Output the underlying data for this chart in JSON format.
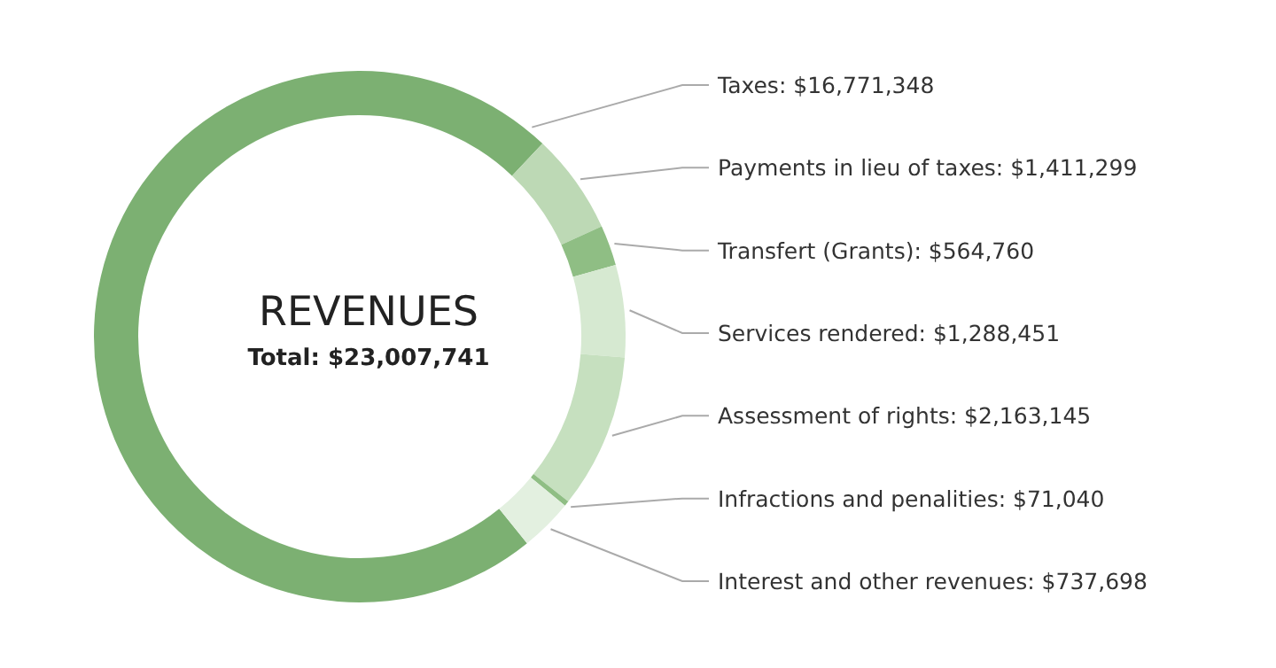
{
  "chart_data": {
    "type": "donut",
    "title": "REVENUES",
    "subtitle": "Total: $23,007,741",
    "categories": [
      "Taxes",
      "Payments in lieu of taxes",
      "Transfert (Grants)",
      "Services rendered",
      "Assessment of rights",
      "Infractions and penalities",
      "Interest and other revenues"
    ],
    "values": [
      16771348,
      1411299,
      564760,
      1288451,
      2163145,
      71040,
      737698
    ],
    "value_labels": [
      "$16,771,348",
      "$1,411,299",
      "$564,760",
      "$1,288,451",
      "$2,163,145",
      "$71,040",
      "$737,698"
    ],
    "colors": [
      "#7cb072",
      "#bdd9b5",
      "#8fbe84",
      "#d6e9d1",
      "#c6e0bf",
      "#8fbe84",
      "#e3f0e0"
    ],
    "legend": false
  }
}
